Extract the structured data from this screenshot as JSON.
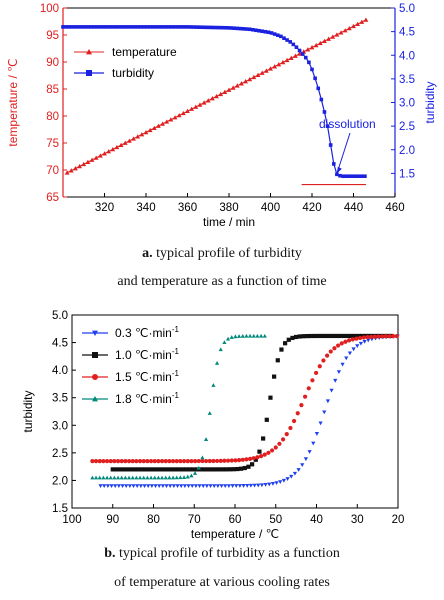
{
  "caption_a": {
    "letter": "a.",
    "line1": "typical profile of turbidity",
    "line2": "and temperature as a function of time"
  },
  "caption_b": {
    "letter": "b.",
    "line1": "typical profile of turbidity as a function",
    "line2": "of temperature at various cooling rates"
  },
  "chart_data": [
    {
      "type": "line",
      "xlabel": "time / min",
      "ylabel": "temperature / ℃",
      "y2label": "turbidity",
      "xlim": [
        300,
        460
      ],
      "ylim": [
        65,
        100
      ],
      "y2lim": [
        1.0,
        5.0
      ],
      "xticks": [
        320,
        340,
        360,
        380,
        400,
        420,
        440,
        460
      ],
      "yticks": [
        65,
        70,
        75,
        80,
        85,
        90,
        95,
        100
      ],
      "y2ticks": [
        1.5,
        2.0,
        2.5,
        3.0,
        3.5,
        4.0,
        4.5,
        5.0
      ],
      "legend_position": "top-left",
      "annotation": {
        "text": "dissolution",
        "x": 431,
        "y2": 1.45
      },
      "series": [
        {
          "name": "temperature",
          "axis": "left",
          "color": "#e02020",
          "marker": "triangle",
          "x_start": 302,
          "x_end": 447,
          "y_start": 69.5,
          "y_end": 98.0,
          "flat": {
            "y": 67.3,
            "x_start": 415,
            "x_end": 446
          }
        },
        {
          "name": "turbidity",
          "axis": "right",
          "color": "#1a22e0",
          "marker": "square",
          "x": [
            300,
            360,
            380,
            390,
            400,
            405,
            410,
            413,
            416,
            418,
            420,
            422,
            424,
            426,
            428,
            429,
            430,
            431,
            432,
            434,
            438,
            442,
            446
          ],
          "y": [
            4.6,
            4.6,
            4.58,
            4.55,
            4.48,
            4.4,
            4.27,
            4.15,
            4.0,
            3.9,
            3.7,
            3.45,
            3.15,
            2.8,
            2.4,
            2.1,
            1.8,
            1.6,
            1.48,
            1.44,
            1.44,
            1.44,
            1.44
          ]
        }
      ]
    },
    {
      "type": "scatter",
      "xlabel": "temperature / ℃",
      "ylabel": "turbidity",
      "xlim": [
        100,
        20
      ],
      "ylim": [
        1.5,
        5.0
      ],
      "xticks": [
        100,
        90,
        80,
        70,
        60,
        50,
        40,
        30,
        20
      ],
      "yticks": [
        1.5,
        2.0,
        2.5,
        3.0,
        3.5,
        4.0,
        4.5,
        5.0
      ],
      "legend_position": "top-left",
      "series": [
        {
          "name": "0.3 ℃·min",
          "superscript": "-1",
          "color": "#1f3ff0",
          "marker": "triangle-down",
          "low": 1.9,
          "high": 4.62,
          "x_start": 93,
          "x_end": 20,
          "mid": 38,
          "slope": 0.33
        },
        {
          "name": "1.0 ℃·min",
          "superscript": "-1",
          "color": "#111111",
          "marker": "square",
          "low": 2.2,
          "high": 4.62,
          "x_start": 90,
          "x_end": 21,
          "mid": 51.5,
          "slope": 0.75
        },
        {
          "name": "1.5 ℃·min",
          "superscript": "-1",
          "color": "#e02020",
          "marker": "circle",
          "low": 2.35,
          "high": 4.62,
          "x_start": 95,
          "x_end": 20,
          "mid": 43,
          "slope": 0.3
        },
        {
          "name": "1.8 ℃·min",
          "superscript": "-1",
          "color": "#00897b",
          "marker": "triangle",
          "low": 2.05,
          "high": 4.62,
          "x_start": 95,
          "x_end": 52,
          "mid": 66,
          "slope": 0.9
        }
      ]
    }
  ]
}
